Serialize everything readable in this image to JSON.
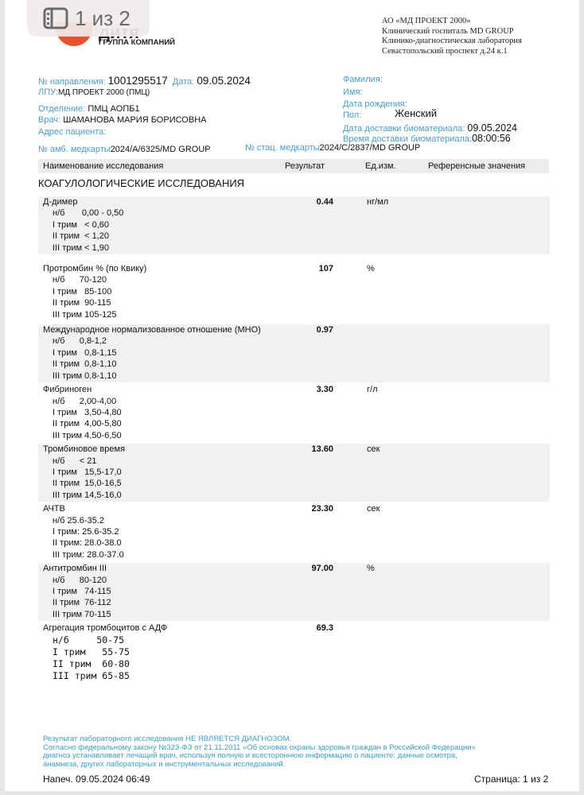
{
  "viewer": {
    "page_indicator": "1 из 2"
  },
  "logo": {
    "name": "дитя",
    "subtitle": "ГРУППА КОМПАНИЙ"
  },
  "organization": [
    "АО «МД ПРОЕКТ 2000»",
    "Клинический госпиталь MD GROUP",
    "Клинико-диагностическая лаборатория",
    "Севастопольский проспект д.24 к.1"
  ],
  "header": {
    "referral_label": "№ направления:",
    "referral": "1001295517",
    "date_label": "Дата:",
    "date": "09.05.2024",
    "lpu_label": "ЛПУ:",
    "lpu": "МД ПРОЕКТ 2000 (ПМЦ)",
    "department_label": "Отделение:",
    "department": "ПМЦ АОПБ1",
    "doctor_label": "Врач:",
    "doctor": "ШАМАНОВА МАРИЯ БОРИСОВНА",
    "address_label": "Адрес пациента:",
    "surname_label": "Фамилия:",
    "name_label": "Имя:",
    "birth_label": "Дата рождения:",
    "sex_label": "Пол:",
    "sex": "Женский",
    "delivery_date_label": "Дата доставки биоматериала:",
    "delivery_date": "09.05.2024",
    "delivery_time_label": "Время доставки биоматериала:",
    "delivery_time": "08:00:56",
    "amb_label": "№ амб. медкарты",
    "amb": "2024/A/6325/MD GROUP",
    "stat_label": "№ стац. медкарты",
    "stat": "2024/C/2837/MD GROUP"
  },
  "table": {
    "columns": [
      "Наименование исследования",
      "Результат",
      "Ед.изм.",
      "Референсные значения"
    ],
    "section": "КОАГУЛОЛОГИЧЕСКИЕ ИССЛЕДОВАНИЯ",
    "rows": [
      {
        "name": "Д-димер",
        "result": "0.44",
        "unit": "нг/мл",
        "refs": [
          "н/б       0,00 - 0,50",
          "I трим   < 0,60",
          "II трим  < 1,20",
          "III трим < 1,90"
        ]
      },
      {
        "name": "Протромбин % (по Квику)",
        "result": "107",
        "unit": "%",
        "refs": [
          "н/б      70-120",
          "I трим   85-100",
          "II трим  90-115",
          "III трим 105-125"
        ]
      },
      {
        "name": "Международное нормализованное отношение (МНО)",
        "result": "0.97",
        "unit": "",
        "refs": [
          "н/б      0,8-1,2",
          "I трим   0,8-1,15",
          "II трим  0,8-1,10",
          "III трим 0,8-1,10"
        ]
      },
      {
        "name": "Фибриноген",
        "result": "3.30",
        "unit": "г/л",
        "refs": [
          "н/б      2,00-4,00",
          "I трим   3,50-4,80",
          "II трим  4,00-5,80",
          "III трим 4,50-6,50"
        ]
      },
      {
        "name": "Тромбиновое время",
        "result": "13.60",
        "unit": "сек",
        "refs": [
          "н/б      < 21",
          "I трим   15,5-17,0",
          "II трим  15,0-16,5",
          "III трим 14,5-16,0"
        ]
      },
      {
        "name": "АЧТВ",
        "result": "23.30",
        "unit": "сек",
        "refs": [
          "н/б 25.6-35.2",
          "I трим: 25.6-35.2",
          "II трим: 28.0-38.0",
          "III трим: 28.0-37.0"
        ]
      },
      {
        "name": "Антитромбин III",
        "result": "97.00",
        "unit": "%",
        "refs": [
          "н/б      80-120",
          "I трим   74-115",
          "II трим  76-112",
          "III трим 70-115"
        ]
      },
      {
        "name": "Агрегация тромбоцитов с АДФ",
        "result": "69.3",
        "unit": "",
        "refs": [
          "н/б     50-75",
          "I трим   55-75",
          "II трим  60-80",
          "III трим 65-85"
        ]
      }
    ]
  },
  "footer": {
    "disclaimer": [
      "Результат лабораторного исследования НЕ ЯВЛЯЕТСЯ ДИАГНОЗОМ.",
      "Согласно федеральному закону №323-ФЗ от 21.11.2011 «Об основах охраны здоровья граждан в Российской Федерации»",
      "диагноз устанавливает лечащий врач, используя полную и всестороннюю информацию о пациенте: данные осмотра,",
      "анамнеза, других лабораторных и инструментальных исследований."
    ],
    "printed": "Напеч. 09.05.2024 06:49",
    "page": "Страница: 1 из 2"
  },
  "colors": {
    "label": "#4a9cc0",
    "logo": "#e8532c",
    "row_shade": "#f1f1f1"
  }
}
